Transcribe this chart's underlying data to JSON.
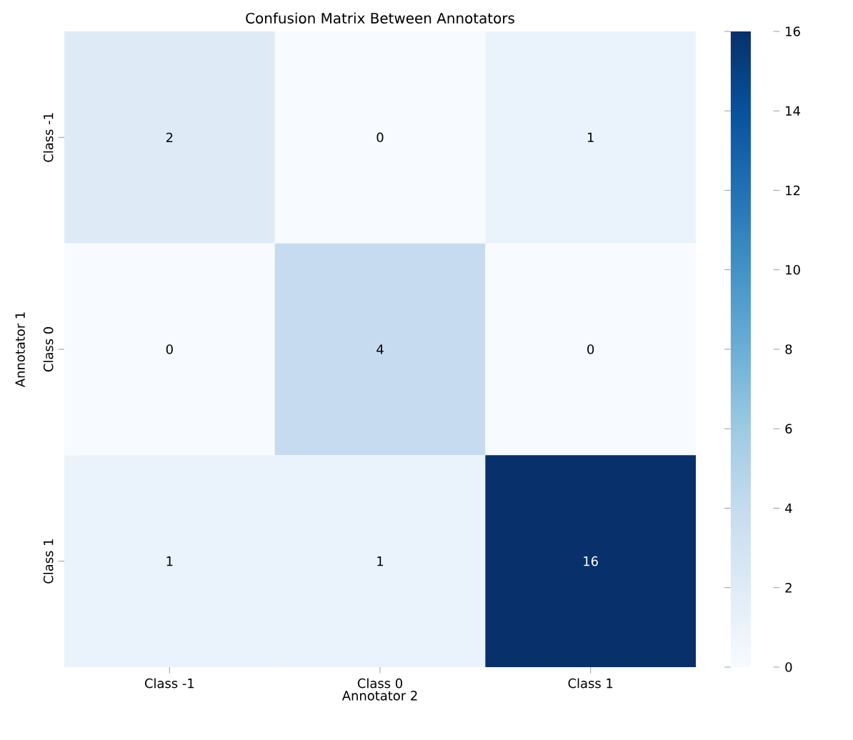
{
  "chart_data": {
    "type": "heatmap",
    "title": "Confusion Matrix Between Annotators",
    "xlabel": "Annotator 2",
    "ylabel": "Annotator 1",
    "categories": [
      "Class -1",
      "Class 0",
      "Class 1"
    ],
    "y_categories": [
      "Class -1",
      "Class 0",
      "Class 1"
    ],
    "cells": [
      [
        2,
        0,
        1
      ],
      [
        0,
        4,
        0
      ],
      [
        1,
        1,
        16
      ]
    ],
    "data_labels": true,
    "clim": [
      0,
      16
    ],
    "cticks": [
      0,
      2,
      4,
      6,
      8,
      10,
      12,
      14,
      16
    ]
  }
}
